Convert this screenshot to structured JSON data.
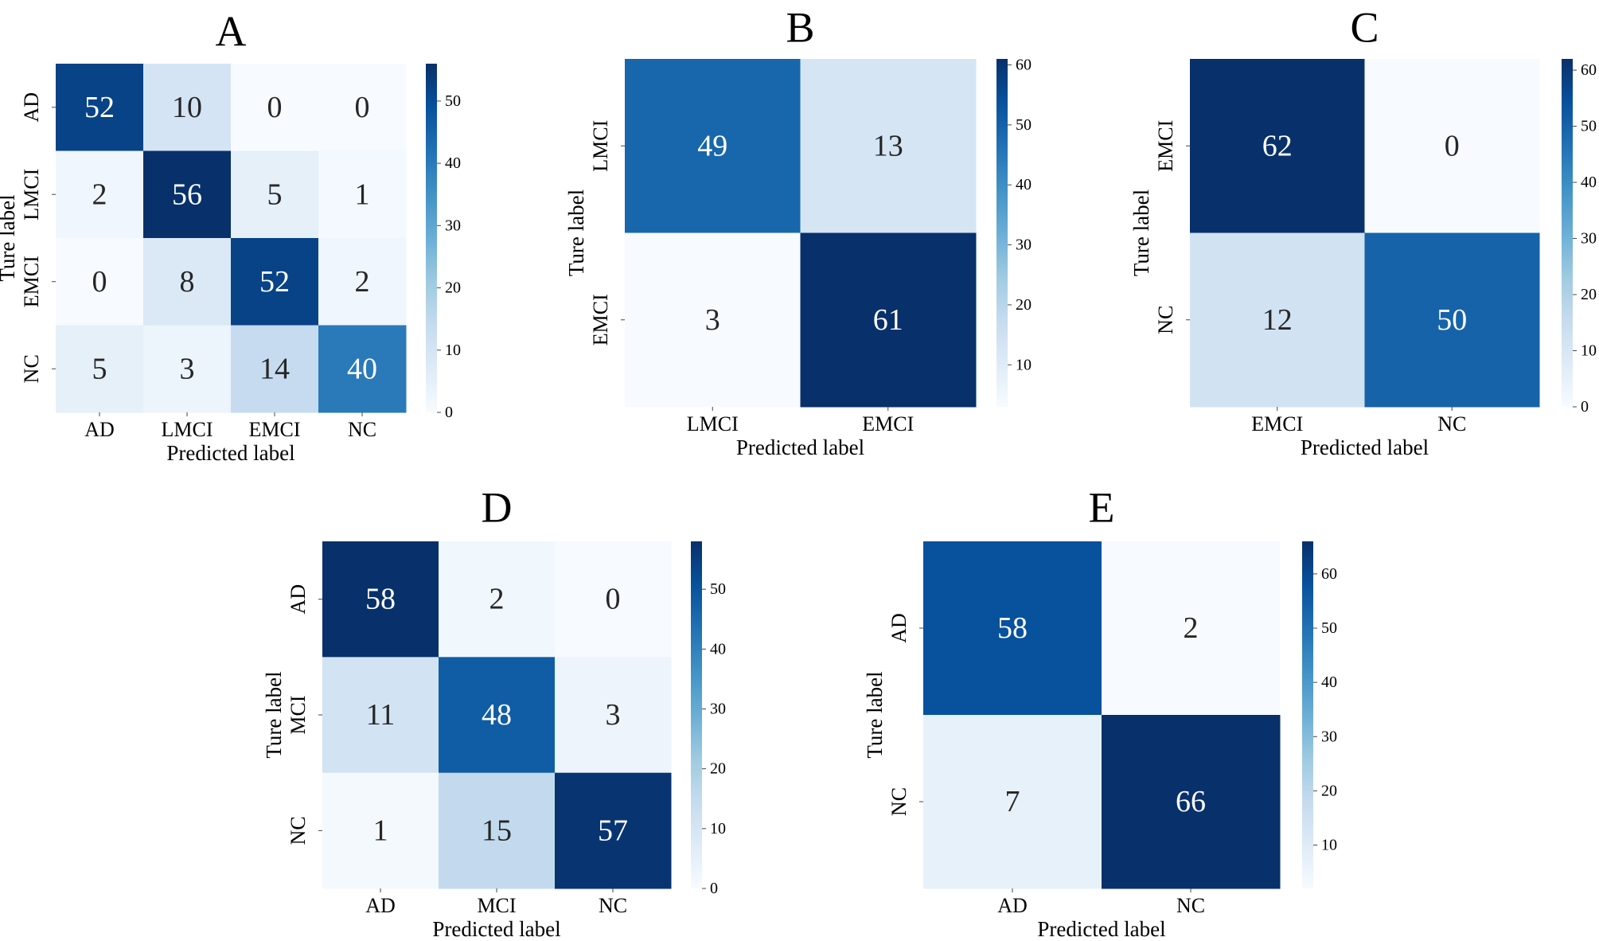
{
  "chart_data": [
    {
      "type": "heatmap",
      "title": "A",
      "xlabel": "Predicted label",
      "ylabel": "Ture label",
      "x_categories": [
        "AD",
        "LMCI",
        "EMCI",
        "NC"
      ],
      "y_categories": [
        "AD",
        "LMCI",
        "EMCI",
        "NC"
      ],
      "values": [
        [
          52,
          10,
          0,
          0
        ],
        [
          2,
          56,
          5,
          1
        ],
        [
          0,
          8,
          52,
          2
        ],
        [
          5,
          3,
          14,
          40
        ]
      ],
      "colorbar": {
        "min": 0,
        "max": 56,
        "ticks": [
          "0",
          "10",
          "20",
          "30",
          "40",
          "50"
        ]
      },
      "colormap": [
        "#f7fbff",
        "#deebf7",
        "#c6dbef",
        "#9ecae1",
        "#6baed6",
        "#4292c6",
        "#2171b5",
        "#08519c",
        "#08306b"
      ]
    },
    {
      "type": "heatmap",
      "title": "B",
      "xlabel": "Predicted label",
      "ylabel": "Ture label",
      "x_categories": [
        "LMCI",
        "EMCI"
      ],
      "y_categories": [
        "LMCI",
        "EMCI"
      ],
      "values": [
        [
          49,
          13
        ],
        [
          3,
          61
        ]
      ],
      "colorbar": {
        "min": 3,
        "max": 61,
        "ticks": [
          "10",
          "20",
          "30",
          "40",
          "50",
          "60"
        ]
      },
      "colormap": [
        "#f7fbff",
        "#deebf7",
        "#c6dbef",
        "#9ecae1",
        "#6baed6",
        "#4292c6",
        "#2171b5",
        "#08519c",
        "#08306b"
      ]
    },
    {
      "type": "heatmap",
      "title": "C",
      "xlabel": "Predicted label",
      "ylabel": "Ture label",
      "x_categories": [
        "EMCI",
        "NC"
      ],
      "y_categories": [
        "EMCI",
        "NC"
      ],
      "values": [
        [
          62,
          0
        ],
        [
          12,
          50
        ]
      ],
      "colorbar": {
        "min": 0,
        "max": 62,
        "ticks": [
          "0",
          "10",
          "20",
          "30",
          "40",
          "50",
          "60"
        ]
      },
      "colormap": [
        "#f7fbff",
        "#deebf7",
        "#c6dbef",
        "#9ecae1",
        "#6baed6",
        "#4292c6",
        "#2171b5",
        "#08519c",
        "#08306b"
      ]
    },
    {
      "type": "heatmap",
      "title": "D",
      "xlabel": "Predicted label",
      "ylabel": "Ture label",
      "x_categories": [
        "AD",
        "MCI",
        "NC"
      ],
      "y_categories": [
        "AD",
        "MCI",
        "NC"
      ],
      "values": [
        [
          58,
          2,
          0
        ],
        [
          11,
          48,
          3
        ],
        [
          1,
          15,
          57
        ]
      ],
      "colorbar": {
        "min": 0,
        "max": 58,
        "ticks": [
          "0",
          "10",
          "20",
          "30",
          "40",
          "50"
        ]
      },
      "colormap": [
        "#f7fbff",
        "#deebf7",
        "#c6dbef",
        "#9ecae1",
        "#6baed6",
        "#4292c6",
        "#2171b5",
        "#08519c",
        "#08306b"
      ]
    },
    {
      "type": "heatmap",
      "title": "E",
      "xlabel": "Predicted label",
      "ylabel": "Ture label",
      "x_categories": [
        "AD",
        "NC"
      ],
      "y_categories": [
        "AD",
        "NC"
      ],
      "values": [
        [
          58,
          2
        ],
        [
          7,
          66
        ]
      ],
      "colorbar": {
        "min": 2,
        "max": 66,
        "ticks": [
          "10",
          "20",
          "30",
          "40",
          "50",
          "60"
        ]
      },
      "colormap": [
        "#f7fbff",
        "#deebf7",
        "#c6dbef",
        "#9ecae1",
        "#6baed6",
        "#4292c6",
        "#2171b5",
        "#08519c",
        "#08306b"
      ]
    }
  ]
}
